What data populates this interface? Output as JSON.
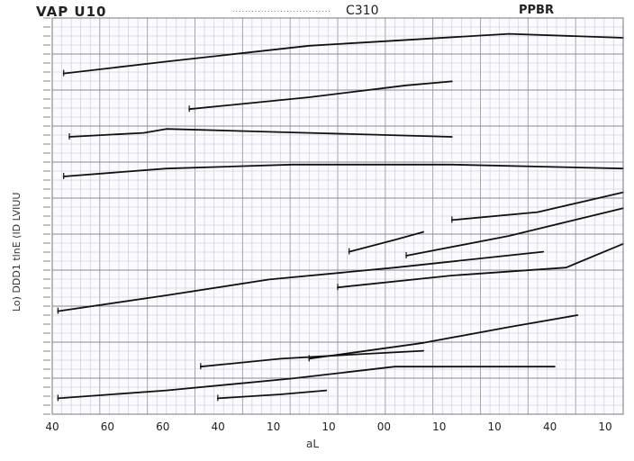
{
  "header": {
    "left_title": "VAP U10",
    "dots": "...............................",
    "center_title": "C310",
    "right_title": "PPBR"
  },
  "chart_data": {
    "type": "line",
    "title": "VAP U10",
    "xlabel": "aL",
    "ylabel": "Lo) DDD1 tlnE (ID LVIUU",
    "x_ticks": [
      "40",
      "60",
      "60",
      "40",
      "10",
      "10",
      "00",
      "10",
      "10",
      "40",
      "10"
    ],
    "xlim": [
      0,
      100
    ],
    "ylim": [
      0,
      100
    ],
    "grid": true,
    "series_color": "#111111",
    "series": [
      {
        "points": [
          [
            2,
            86
          ],
          [
            20,
            89
          ],
          [
            45,
            93
          ],
          [
            80,
            96
          ],
          [
            100,
            95
          ]
        ]
      },
      {
        "points": [
          [
            24,
            77
          ],
          [
            45,
            80
          ],
          [
            62,
            83
          ],
          [
            70,
            84
          ]
        ]
      },
      {
        "points": [
          [
            3,
            70
          ],
          [
            16,
            71
          ],
          [
            20,
            72
          ],
          [
            45,
            71
          ],
          [
            70,
            70
          ]
        ]
      },
      {
        "points": [
          [
            2,
            60
          ],
          [
            20,
            62
          ],
          [
            42,
            63
          ],
          [
            70,
            63
          ],
          [
            100,
            62
          ]
        ]
      },
      {
        "points": [
          [
            70,
            49
          ],
          [
            85,
            51
          ],
          [
            100,
            56
          ]
        ]
      },
      {
        "points": [
          [
            52,
            41
          ],
          [
            60,
            44
          ],
          [
            65,
            46
          ]
        ]
      },
      {
        "points": [
          [
            62,
            40
          ],
          [
            80,
            45
          ],
          [
            100,
            52
          ]
        ]
      },
      {
        "points": [
          [
            1,
            26
          ],
          [
            20,
            30
          ],
          [
            38,
            34
          ],
          [
            60,
            37
          ],
          [
            86,
            41
          ]
        ]
      },
      {
        "points": [
          [
            50,
            32
          ],
          [
            70,
            35
          ],
          [
            90,
            37
          ],
          [
            100,
            43
          ]
        ]
      },
      {
        "points": [
          [
            45,
            14
          ],
          [
            65,
            18
          ],
          [
            80,
            22
          ],
          [
            92,
            25
          ]
        ]
      },
      {
        "points": [
          [
            26,
            12
          ],
          [
            40,
            14
          ],
          [
            52,
            15
          ],
          [
            65,
            16
          ]
        ]
      },
      {
        "points": [
          [
            1,
            4
          ],
          [
            20,
            6
          ],
          [
            42,
            9
          ],
          [
            60,
            12
          ],
          [
            88,
            12
          ]
        ]
      },
      {
        "points": [
          [
            29,
            4
          ],
          [
            40,
            5
          ],
          [
            48,
            6
          ]
        ]
      }
    ]
  }
}
